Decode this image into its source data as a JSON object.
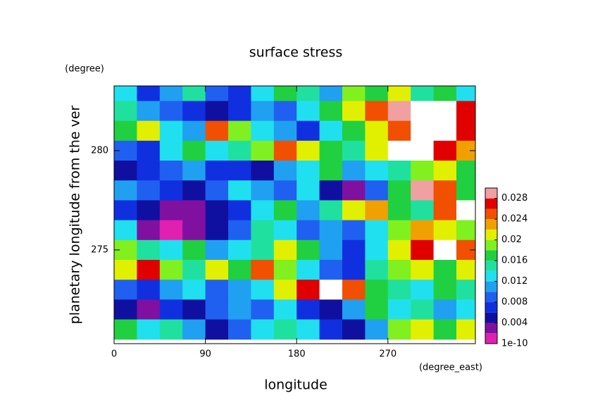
{
  "chart_data": {
    "type": "heatmap",
    "title": "surface stress",
    "x_label": "longitude",
    "x_unit": "(degree_east)",
    "y_label": "planetary longitude from the ver",
    "y_unit": "(degree)",
    "xlim": [
      0,
      356.25
    ],
    "xticks": [
      0,
      90,
      180,
      270
    ],
    "ylim": [
      270.28,
      283.26
    ],
    "yticks": [
      275,
      280
    ],
    "x": [
      11.25,
      33.75,
      56.25,
      78.75,
      101.25,
      123.75,
      146.25,
      168.75,
      191.25,
      213.75,
      236.25,
      258.75,
      281.25,
      303.75,
      326.25,
      348.75
    ],
    "y": [
      283,
      282,
      281,
      280,
      279,
      278,
      277,
      276,
      275,
      274,
      273,
      272,
      271
    ],
    "z": [
      [
        0.012,
        0.006,
        0.01,
        0.014,
        0.008,
        0.006,
        0.012,
        0.016,
        0.014,
        0.01,
        0.018,
        0.016,
        0.02,
        0.014,
        0.016,
        0.012
      ],
      [
        0.014,
        0.01,
        0.008,
        0.006,
        0.004,
        0.006,
        0.01,
        0.008,
        0.012,
        0.016,
        0.02,
        0.024,
        0.028,
        0.03,
        0.03,
        0.026
      ],
      [
        0.016,
        0.02,
        0.012,
        0.01,
        0.024,
        0.018,
        0.012,
        0.01,
        0.006,
        0.012,
        0.016,
        0.02,
        0.024,
        0.03,
        0.03,
        0.026
      ],
      [
        0.008,
        0.006,
        0.012,
        0.016,
        0.012,
        0.014,
        0.018,
        0.024,
        0.02,
        0.016,
        0.014,
        0.02,
        0.03,
        0.03,
        0.026,
        0.022
      ],
      [
        0.004,
        0.006,
        0.008,
        0.01,
        0.006,
        0.006,
        0.004,
        0.01,
        0.012,
        0.016,
        0.01,
        0.012,
        0.014,
        0.018,
        0.02,
        0.016
      ],
      [
        0.01,
        0.008,
        0.006,
        0.004,
        0.008,
        0.012,
        0.01,
        0.008,
        0.012,
        0.004,
        0.003,
        0.008,
        0.016,
        0.028,
        0.024,
        0.016
      ],
      [
        0.006,
        0.004,
        0.003,
        0.002,
        0.004,
        0.006,
        0.012,
        0.016,
        0.01,
        0.014,
        0.02,
        0.022,
        0.016,
        0.014,
        0.024,
        0.03
      ],
      [
        0.012,
        0.003,
        0.001,
        0.002,
        0.004,
        0.008,
        0.014,
        0.012,
        0.008,
        0.01,
        0.008,
        0.012,
        0.018,
        0.022,
        0.02,
        0.018
      ],
      [
        0.018,
        0.014,
        0.012,
        0.016,
        0.01,
        0.012,
        0.014,
        0.02,
        0.016,
        0.01,
        0.006,
        0.012,
        0.02,
        0.026,
        0.03,
        0.024
      ],
      [
        0.02,
        0.026,
        0.018,
        0.014,
        0.02,
        0.016,
        0.024,
        0.018,
        0.012,
        0.008,
        0.006,
        0.014,
        0.018,
        0.02,
        0.016,
        0.02
      ],
      [
        0.008,
        0.006,
        0.01,
        0.012,
        0.008,
        0.01,
        0.012,
        0.02,
        0.026,
        0.03,
        0.024,
        0.016,
        0.014,
        0.012,
        0.016,
        0.014
      ],
      [
        0.004,
        0.002,
        0.006,
        0.004,
        0.008,
        0.01,
        0.008,
        0.012,
        0.006,
        0.004,
        0.01,
        0.016,
        0.012,
        0.014,
        0.01,
        0.012
      ],
      [
        0.016,
        0.012,
        0.014,
        0.01,
        0.004,
        0.008,
        0.012,
        0.014,
        0.012,
        0.006,
        0.004,
        0.01,
        0.018,
        0.02,
        0.016,
        0.02
      ]
    ],
    "levels": [
      0,
      0.002,
      0.004,
      0.006,
      0.008,
      0.01,
      0.012,
      0.014,
      0.016,
      0.018,
      0.02,
      0.022,
      0.024,
      0.026,
      0.028,
      0.03
    ],
    "colors": [
      "#e020b0",
      "#8010a0",
      "#1010a0",
      "#1030e0",
      "#2060f0",
      "#20a0f0",
      "#20e0f0",
      "#20e0a0",
      "#20d040",
      "#80f020",
      "#e0f000",
      "#f0a000",
      "#f05000",
      "#e00000",
      "#f0a0a0"
    ],
    "over_color": "#ffffff",
    "cticks": [
      1e-10,
      0.004,
      0.008,
      0.012,
      0.016,
      0.02,
      0.024,
      0.028
    ]
  }
}
